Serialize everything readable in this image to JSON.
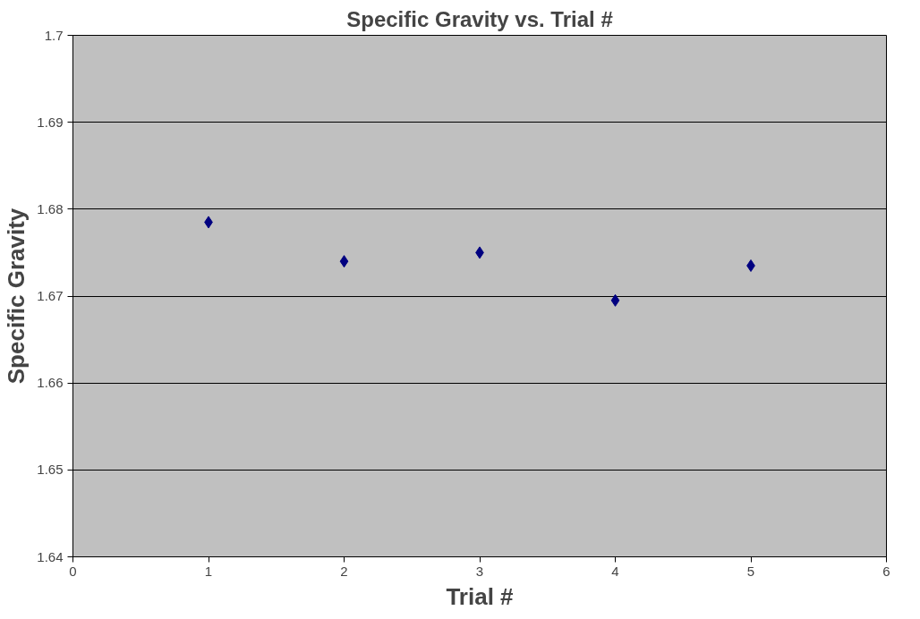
{
  "chart_data": {
    "type": "scatter",
    "title": "Specific Gravity vs. Trial #",
    "xlabel": "Trial #",
    "ylabel": "Specific Gravity",
    "x": [
      1,
      2,
      3,
      4,
      5
    ],
    "series": [
      {
        "color": "#000080",
        "values": [
          1.6785,
          1.674,
          1.675,
          1.6695,
          1.6735
        ]
      }
    ],
    "xlim": [
      0,
      6
    ],
    "xticks": [
      0,
      1,
      2,
      3,
      4,
      5,
      6
    ],
    "ylim": [
      1.64,
      1.7
    ],
    "yticks": [
      1.64,
      1.65,
      1.66,
      1.67,
      1.68,
      1.69,
      1.7
    ],
    "grid": "y",
    "marker": "diamond"
  }
}
